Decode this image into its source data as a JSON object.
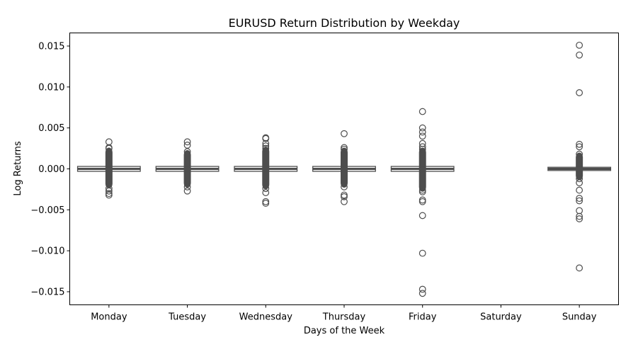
{
  "chart_data": {
    "type": "box",
    "title": "EURUSD Return Distribution by Weekday",
    "xlabel": "Days of the Week",
    "ylabel": "Log Returns",
    "ylim": [
      -0.0166,
      0.0166
    ],
    "yticks": [
      0.015,
      0.01,
      0.005,
      0.0,
      -0.005,
      -0.01,
      -0.015
    ],
    "ytick_labels": [
      "0.015",
      "0.010",
      "0.005",
      "0.000",
      "−0.005",
      "−0.010",
      "−0.015"
    ],
    "categories": [
      "Monday",
      "Tuesday",
      "Wednesday",
      "Thursday",
      "Friday",
      "Saturday",
      "Sunday"
    ],
    "grid": false,
    "box_color": "#4d4d4d",
    "series": [
      {
        "name": "Monday",
        "q1": -0.0003,
        "median": 0.0,
        "q3": 0.0003,
        "whisker_low": -0.0001,
        "whisker_high": 0.0001,
        "dense_range": [
          -0.002,
          0.0022
        ],
        "outliers": [
          0.0033,
          0.0026,
          0.0025,
          -0.0024,
          -0.0027,
          -0.003,
          -0.0032
        ]
      },
      {
        "name": "Tuesday",
        "q1": -0.0003,
        "median": 0.0,
        "q3": 0.0003,
        "whisker_low": -0.0001,
        "whisker_high": 0.0001,
        "dense_range": [
          -0.0019,
          0.0019
        ],
        "outliers": [
          0.0033,
          0.0029,
          0.0021,
          -0.0022,
          -0.0027
        ]
      },
      {
        "name": "Wednesday",
        "q1": -0.0003,
        "median": 0.0,
        "q3": 0.0003,
        "whisker_low": -0.0001,
        "whisker_high": 0.0001,
        "dense_range": [
          -0.0021,
          0.0023
        ],
        "outliers": [
          0.0038,
          0.0037,
          0.0031,
          0.0028,
          0.0025,
          -0.0024,
          -0.0029,
          -0.004,
          -0.0042
        ]
      },
      {
        "name": "Thursday",
        "q1": -0.0003,
        "median": 0.0,
        "q3": 0.0003,
        "whisker_low": -0.0001,
        "whisker_high": 0.0001,
        "dense_range": [
          -0.0019,
          0.0022
        ],
        "outliers": [
          0.0043,
          0.0026,
          0.0024,
          -0.0022,
          -0.0032,
          -0.0034,
          -0.004
        ]
      },
      {
        "name": "Friday",
        "q1": -0.0003,
        "median": 0.0,
        "q3": 0.0003,
        "whisker_low": -0.0001,
        "whisker_high": 0.0001,
        "dense_range": [
          -0.0024,
          0.0022
        ],
        "outliers": [
          0.007,
          0.005,
          0.0045,
          0.004,
          0.0031,
          0.0027,
          0.0024,
          -0.0026,
          -0.0028,
          -0.0038,
          -0.004,
          -0.0057,
          -0.0103,
          -0.0147,
          -0.0152
        ]
      },
      {
        "name": "Saturday",
        "q1": null,
        "median": null,
        "q3": null,
        "whisker_low": null,
        "whisker_high": null,
        "dense_range": null,
        "outliers": []
      },
      {
        "name": "Sunday",
        "q1": -0.0002,
        "median": 0.0,
        "q3": 0.0002,
        "whisker_low": -0.0001,
        "whisker_high": 0.0001,
        "dense_range": [
          -0.001,
          0.0016
        ],
        "outliers": [
          0.0151,
          0.0139,
          0.0093,
          0.003,
          0.0027,
          0.0018,
          -0.0012,
          -0.0017,
          -0.0026,
          -0.0036,
          -0.0039,
          -0.0051,
          -0.0058,
          -0.0061,
          -0.0121
        ]
      }
    ]
  }
}
